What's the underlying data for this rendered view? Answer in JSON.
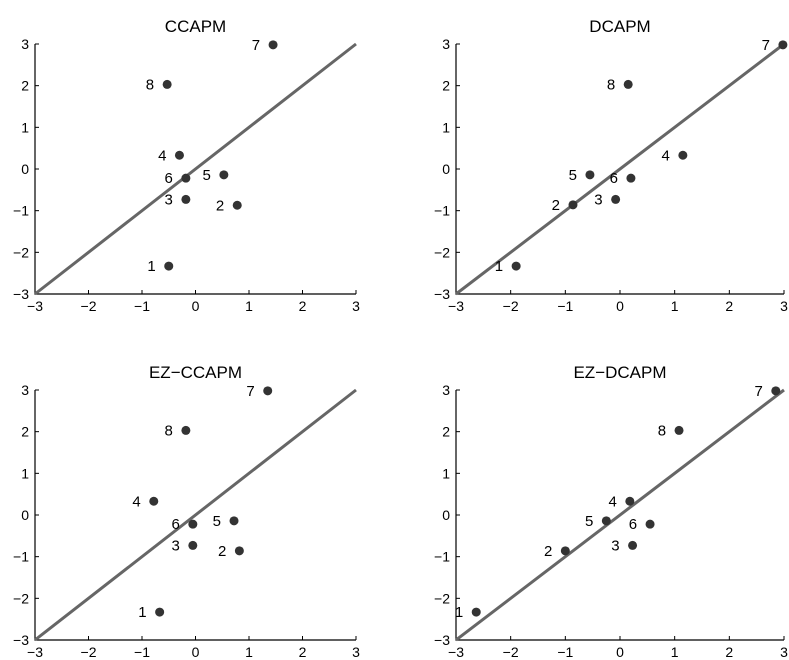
{
  "chart_data": [
    {
      "type": "scatter",
      "title": "CCAPM",
      "xlim": [
        -3,
        3
      ],
      "ylim": [
        -3,
        3
      ],
      "xticks": [
        -3,
        -2,
        -1,
        0,
        1,
        2,
        3
      ],
      "yticks": [
        -3,
        -2,
        -1,
        0,
        1,
        2,
        3
      ],
      "grid": false,
      "colors": {
        "point": "#333333",
        "line": "#666666"
      },
      "reference_line": {
        "from": [
          -3,
          -3
        ],
        "to": [
          3,
          3
        ]
      },
      "points": [
        {
          "label": "1",
          "x": -0.5,
          "y": -2.33
        },
        {
          "label": "2",
          "x": 0.78,
          "y": -0.87
        },
        {
          "label": "3",
          "x": -0.18,
          "y": -0.73
        },
        {
          "label": "4",
          "x": -0.3,
          "y": 0.33
        },
        {
          "label": "5",
          "x": 0.53,
          "y": -0.14
        },
        {
          "label": "6",
          "x": -0.18,
          "y": -0.22
        },
        {
          "label": "7",
          "x": 1.45,
          "y": 2.98
        },
        {
          "label": "8",
          "x": -0.53,
          "y": 2.03
        }
      ]
    },
    {
      "type": "scatter",
      "title": "DCAPM",
      "xlim": [
        -3,
        3
      ],
      "ylim": [
        -3,
        3
      ],
      "xticks": [
        -3,
        -2,
        -1,
        0,
        1,
        2,
        3
      ],
      "yticks": [
        -3,
        -2,
        -1,
        0,
        1,
        2,
        3
      ],
      "grid": false,
      "colors": {
        "point": "#333333",
        "line": "#666666"
      },
      "reference_line": {
        "from": [
          -3,
          -3
        ],
        "to": [
          3,
          3
        ]
      },
      "points": [
        {
          "label": "1",
          "x": -1.9,
          "y": -2.33
        },
        {
          "label": "2",
          "x": -0.86,
          "y": -0.86
        },
        {
          "label": "3",
          "x": -0.08,
          "y": -0.73
        },
        {
          "label": "4",
          "x": 1.15,
          "y": 0.33
        },
        {
          "label": "5",
          "x": -0.55,
          "y": -0.14
        },
        {
          "label": "6",
          "x": 0.2,
          "y": -0.22
        },
        {
          "label": "7",
          "x": 2.98,
          "y": 2.98
        },
        {
          "label": "8",
          "x": 0.15,
          "y": 2.03
        }
      ]
    },
    {
      "type": "scatter",
      "title": "EZ−CCAPM",
      "xlim": [
        -3,
        3
      ],
      "ylim": [
        -3,
        3
      ],
      "xticks": [
        -3,
        -2,
        -1,
        0,
        1,
        2,
        3
      ],
      "yticks": [
        -3,
        -2,
        -1,
        0,
        1,
        2,
        3
      ],
      "grid": false,
      "colors": {
        "point": "#333333",
        "line": "#666666"
      },
      "reference_line": {
        "from": [
          -3,
          -3
        ],
        "to": [
          3,
          3
        ]
      },
      "points": [
        {
          "label": "1",
          "x": -0.67,
          "y": -2.33
        },
        {
          "label": "2",
          "x": 0.82,
          "y": -0.86
        },
        {
          "label": "3",
          "x": -0.05,
          "y": -0.73
        },
        {
          "label": "4",
          "x": -0.78,
          "y": 0.33
        },
        {
          "label": "5",
          "x": 0.72,
          "y": -0.14
        },
        {
          "label": "6",
          "x": -0.05,
          "y": -0.22
        },
        {
          "label": "7",
          "x": 1.35,
          "y": 2.98
        },
        {
          "label": "8",
          "x": -0.18,
          "y": 2.03
        }
      ]
    },
    {
      "type": "scatter",
      "title": "EZ−DCAPM",
      "xlim": [
        -3,
        3
      ],
      "ylim": [
        -3,
        3
      ],
      "xticks": [
        -3,
        -2,
        -1,
        0,
        1,
        2,
        3
      ],
      "yticks": [
        -3,
        -2,
        -1,
        0,
        1,
        2,
        3
      ],
      "grid": false,
      "colors": {
        "point": "#333333",
        "line": "#666666"
      },
      "reference_line": {
        "from": [
          -3,
          -3
        ],
        "to": [
          3,
          3
        ]
      },
      "points": [
        {
          "label": "1",
          "x": -2.63,
          "y": -2.33
        },
        {
          "label": "2",
          "x": -1.0,
          "y": -0.86
        },
        {
          "label": "3",
          "x": 0.23,
          "y": -0.73
        },
        {
          "label": "4",
          "x": 0.18,
          "y": 0.33
        },
        {
          "label": "5",
          "x": -0.25,
          "y": -0.14
        },
        {
          "label": "6",
          "x": 0.55,
          "y": -0.22
        },
        {
          "label": "7",
          "x": 2.85,
          "y": 2.98
        },
        {
          "label": "8",
          "x": 1.08,
          "y": 2.03
        }
      ]
    }
  ]
}
